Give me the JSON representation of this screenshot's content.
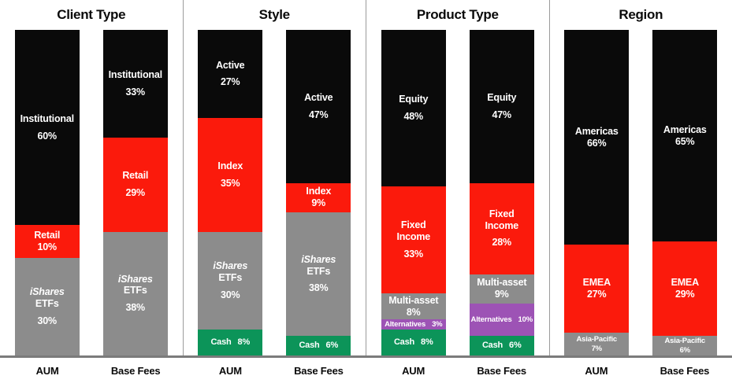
{
  "chart_data": {
    "type": "bar",
    "subtype": "100-percent-stacked-columns",
    "unit": "%",
    "legend_position": "none",
    "grid": false,
    "ylim": [
      0,
      100
    ],
    "colors": {
      "black": "#0a0a0a",
      "red": "#fb1a0c",
      "gray": "#8c8c8c",
      "green": "#0c9459",
      "purple": "#9d53b5",
      "label_text": "#ffffff",
      "baseline": "#7b7b7b",
      "divider": "#9b9b9b",
      "title_text": "#0a0a0a"
    },
    "groups": [
      {
        "title": "Client Type",
        "bars": [
          {
            "label": "AUM",
            "segments": [
              {
                "lines": [
                  "Institutional"
                ],
                "pct": 60,
                "pct_label": "60%",
                "color": "black",
                "layout": "stack-gap",
                "size": "md"
              },
              {
                "lines": [
                  "Retail"
                ],
                "pct": 10,
                "pct_label": "10%",
                "color": "red",
                "layout": "stack",
                "size": "md"
              },
              {
                "lines": [
                  "iShares",
                  "ETFs"
                ],
                "italic_first": true,
                "pct": 30,
                "pct_label": "30%",
                "color": "gray",
                "layout": "stack-gap",
                "size": "md"
              }
            ]
          },
          {
            "label": "Base Fees",
            "segments": [
              {
                "lines": [
                  "Institutional"
                ],
                "pct": 33,
                "pct_label": "33%",
                "color": "black",
                "layout": "stack-gap",
                "size": "md"
              },
              {
                "lines": [
                  "Retail"
                ],
                "pct": 29,
                "pct_label": "29%",
                "color": "red",
                "layout": "stack-gap",
                "size": "md"
              },
              {
                "lines": [
                  "iShares",
                  "ETFs"
                ],
                "italic_first": true,
                "pct": 38,
                "pct_label": "38%",
                "color": "gray",
                "layout": "stack-gap",
                "size": "md"
              }
            ]
          }
        ]
      },
      {
        "title": "Style",
        "bars": [
          {
            "label": "AUM",
            "segments": [
              {
                "lines": [
                  "Active"
                ],
                "pct": 27,
                "pct_label": "27%",
                "color": "black",
                "layout": "stack-gap",
                "size": "md"
              },
              {
                "lines": [
                  "Index"
                ],
                "pct": 35,
                "pct_label": "35%",
                "color": "red",
                "layout": "stack-gap",
                "size": "md"
              },
              {
                "lines": [
                  "iShares",
                  "ETFs"
                ],
                "italic_first": true,
                "pct": 30,
                "pct_label": "30%",
                "color": "gray",
                "layout": "stack-gap",
                "size": "md"
              },
              {
                "lines": [
                  "Cash"
                ],
                "pct": 8,
                "pct_label": "8%",
                "color": "green",
                "layout": "inline",
                "size": "sm"
              }
            ]
          },
          {
            "label": "Base Fees",
            "segments": [
              {
                "lines": [
                  "Active"
                ],
                "pct": 47,
                "pct_label": "47%",
                "color": "black",
                "layout": "stack-gap",
                "size": "md"
              },
              {
                "lines": [
                  "Index"
                ],
                "pct": 9,
                "pct_label": "9%",
                "color": "red",
                "layout": "stack",
                "size": "md"
              },
              {
                "lines": [
                  "iShares",
                  "ETFs"
                ],
                "italic_first": true,
                "pct": 38,
                "pct_label": "38%",
                "color": "gray",
                "layout": "stack-gap",
                "size": "md"
              },
              {
                "lines": [
                  "Cash"
                ],
                "pct": 6,
                "pct_label": "6%",
                "color": "green",
                "layout": "inline",
                "size": "sm"
              }
            ]
          }
        ]
      },
      {
        "title": "Product Type",
        "bars": [
          {
            "label": "AUM",
            "segments": [
              {
                "lines": [
                  "Equity"
                ],
                "pct": 48,
                "pct_label": "48%",
                "color": "black",
                "layout": "stack-gap",
                "size": "md"
              },
              {
                "lines": [
                  "Fixed",
                  "Income"
                ],
                "pct": 33,
                "pct_label": "33%",
                "color": "red",
                "layout": "stack-gap",
                "size": "md"
              },
              {
                "lines": [
                  "Multi-asset"
                ],
                "pct": 8,
                "pct_label": "8%",
                "color": "gray",
                "layout": "stack",
                "size": "md"
              },
              {
                "lines": [
                  "Alternatives"
                ],
                "pct": 3,
                "pct_label": "3%",
                "color": "purple",
                "layout": "inline",
                "size": "xs"
              },
              {
                "lines": [
                  "Cash"
                ],
                "pct": 8,
                "pct_label": "8%",
                "color": "green",
                "layout": "inline",
                "size": "sm"
              }
            ]
          },
          {
            "label": "Base Fees",
            "segments": [
              {
                "lines": [
                  "Equity"
                ],
                "pct": 47,
                "pct_label": "47%",
                "color": "black",
                "layout": "stack-gap",
                "size": "md"
              },
              {
                "lines": [
                  "Fixed",
                  "Income"
                ],
                "pct": 28,
                "pct_label": "28%",
                "color": "red",
                "layout": "stack-gap",
                "size": "md"
              },
              {
                "lines": [
                  "Multi-asset"
                ],
                "pct": 9,
                "pct_label": "9%",
                "color": "gray",
                "layout": "stack",
                "size": "md"
              },
              {
                "lines": [
                  "Alternatives"
                ],
                "pct": 10,
                "pct_label": "10%",
                "color": "purple",
                "layout": "inline",
                "size": "xs"
              },
              {
                "lines": [
                  "Cash"
                ],
                "pct": 6,
                "pct_label": "6%",
                "color": "green",
                "layout": "inline",
                "size": "sm"
              }
            ]
          }
        ]
      },
      {
        "title": "Region",
        "bars": [
          {
            "label": "AUM",
            "segments": [
              {
                "lines": [
                  "Americas"
                ],
                "pct": 66,
                "pct_label": "66%",
                "color": "black",
                "layout": "stack",
                "size": "md"
              },
              {
                "lines": [
                  "EMEA"
                ],
                "pct": 27,
                "pct_label": "27%",
                "color": "red",
                "layout": "stack",
                "size": "md"
              },
              {
                "lines": [
                  "Asia-Pacific"
                ],
                "pct": 7,
                "pct_label": "7%",
                "color": "gray",
                "layout": "stack",
                "size": "xs"
              }
            ]
          },
          {
            "label": "Base Fees",
            "segments": [
              {
                "lines": [
                  "Americas"
                ],
                "pct": 65,
                "pct_label": "65%",
                "color": "black",
                "layout": "stack",
                "size": "md"
              },
              {
                "lines": [
                  "EMEA"
                ],
                "pct": 29,
                "pct_label": "29%",
                "color": "red",
                "layout": "stack",
                "size": "md"
              },
              {
                "lines": [
                  "Asia-Pacific"
                ],
                "pct": 6,
                "pct_label": "6%",
                "color": "gray",
                "layout": "stack",
                "size": "xs"
              }
            ]
          }
        ]
      }
    ]
  }
}
